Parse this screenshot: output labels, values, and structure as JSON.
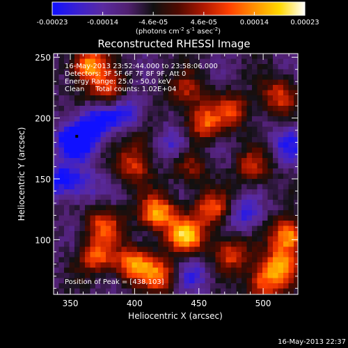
{
  "chart_data": {
    "type": "heatmap",
    "title": "Reconstructed RHESSI Image",
    "xlabel": "Heliocentric X (arcsec)",
    "ylabel": "Heliocentric Y (arcsec)",
    "xlim": [
      337,
      527
    ],
    "ylim": [
      55,
      253
    ],
    "xticks": [
      350,
      400,
      450,
      500
    ],
    "yticks": [
      100,
      150,
      200,
      250
    ],
    "colorbar": {
      "ticks": [
        "-0.00023",
        "-0.00014",
        "-4.6e-05",
        "4.6e-05",
        "0.00014",
        "0.00023"
      ],
      "min": -0.00023,
      "max": 0.00023,
      "unit_main": "(photons cm",
      "unit_sup1": "-2",
      "unit_mid": " s",
      "unit_sup2": "-1",
      "unit_end": " asec",
      "unit_sup3": "-2",
      "unit_close": ")",
      "stops": [
        "#1010ff",
        "#3a20d0",
        "#5a2aa0",
        "#502070",
        "#101010",
        "#500a00",
        "#b01800",
        "#ff4000",
        "#ff9000",
        "#ffd800",
        "#ffffff"
      ]
    },
    "annotations": {
      "time_range": "16-May-2013 23:52:44.000 to 23:58:06.000",
      "detectors": "Detectors: 3F 5F 6F 7F 8F 9F, Att 0",
      "energy": "Energy Range: 25.0 - 50.0 keV",
      "clean": "Clean     Total counts: 1.02E+04",
      "peak": "Position of Peak = [438,103]"
    },
    "peak_position": [
      438,
      103
    ],
    "min_marker": [
      355,
      185
    ],
    "hotspots": [
      {
        "x": 365,
        "y": 243,
        "v": 0.9
      },
      {
        "x": 379,
        "y": 222,
        "v": 0.6
      },
      {
        "x": 440,
        "y": 222,
        "v": 0.5
      },
      {
        "x": 477,
        "y": 206,
        "v": 0.55
      },
      {
        "x": 454,
        "y": 196,
        "v": 0.7
      },
      {
        "x": 512,
        "y": 218,
        "v": 0.6
      },
      {
        "x": 405,
        "y": 180,
        "v": 0.35
      },
      {
        "x": 400,
        "y": 160,
        "v": 0.55
      },
      {
        "x": 443,
        "y": 160,
        "v": 0.4
      },
      {
        "x": 492,
        "y": 160,
        "v": 0.5
      },
      {
        "x": 418,
        "y": 122,
        "v": 0.95
      },
      {
        "x": 440,
        "y": 103,
        "v": 1.0
      },
      {
        "x": 460,
        "y": 125,
        "v": 0.7
      },
      {
        "x": 376,
        "y": 112,
        "v": 0.65
      },
      {
        "x": 371,
        "y": 86,
        "v": 0.7
      },
      {
        "x": 400,
        "y": 80,
        "v": 0.85
      },
      {
        "x": 420,
        "y": 70,
        "v": 0.7
      },
      {
        "x": 475,
        "y": 88,
        "v": 0.6
      },
      {
        "x": 520,
        "y": 103,
        "v": 0.95
      },
      {
        "x": 513,
        "y": 78,
        "v": 0.85
      },
      {
        "x": 500,
        "y": 63,
        "v": 0.65
      }
    ],
    "coldspots": [
      {
        "x": 355,
        "y": 182,
        "v": -1.0
      },
      {
        "x": 372,
        "y": 198,
        "v": -0.6
      },
      {
        "x": 395,
        "y": 205,
        "v": -0.45
      },
      {
        "x": 342,
        "y": 150,
        "v": -0.55
      },
      {
        "x": 430,
        "y": 178,
        "v": -0.45
      },
      {
        "x": 520,
        "y": 178,
        "v": -0.45
      },
      {
        "x": 485,
        "y": 120,
        "v": -0.45
      },
      {
        "x": 360,
        "y": 145,
        "v": -0.35
      },
      {
        "x": 445,
        "y": 70,
        "v": -0.4
      }
    ]
  },
  "footer": {
    "timestamp": "16-May-2013 22:37"
  }
}
